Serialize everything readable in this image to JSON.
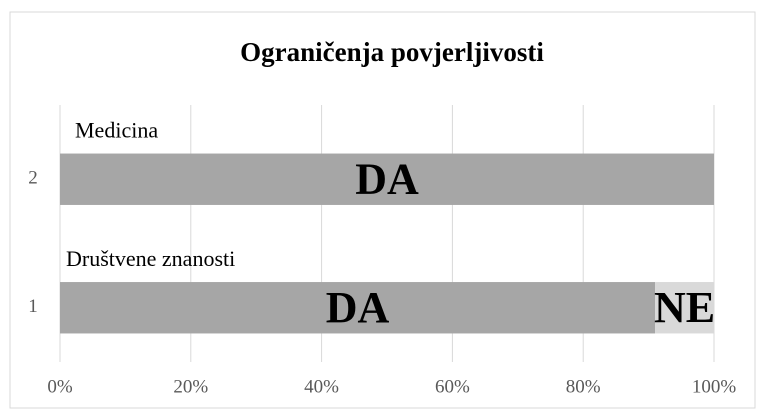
{
  "chart_data": {
    "type": "stacked_barh",
    "title": "Ograničenja povjerljivosti",
    "categories": [
      "1",
      "2"
    ],
    "bar_titles": [
      "Društvene znanosti",
      "Medicina"
    ],
    "series": [
      {
        "name": "DA",
        "color": "#a6a6a6",
        "values": [
          91,
          100
        ]
      },
      {
        "name": "NE",
        "color": "#d9d9d9",
        "values": [
          9,
          0
        ]
      }
    ],
    "xlim": [
      0,
      100
    ],
    "xticks": [
      {
        "value": 0,
        "label": "0%"
      },
      {
        "value": 20,
        "label": "20%"
      },
      {
        "value": 40,
        "label": "40%"
      },
      {
        "value": 60,
        "label": "60%"
      },
      {
        "value": 80,
        "label": "80%"
      },
      {
        "value": 100,
        "label": "100%"
      }
    ],
    "grid": true
  }
}
